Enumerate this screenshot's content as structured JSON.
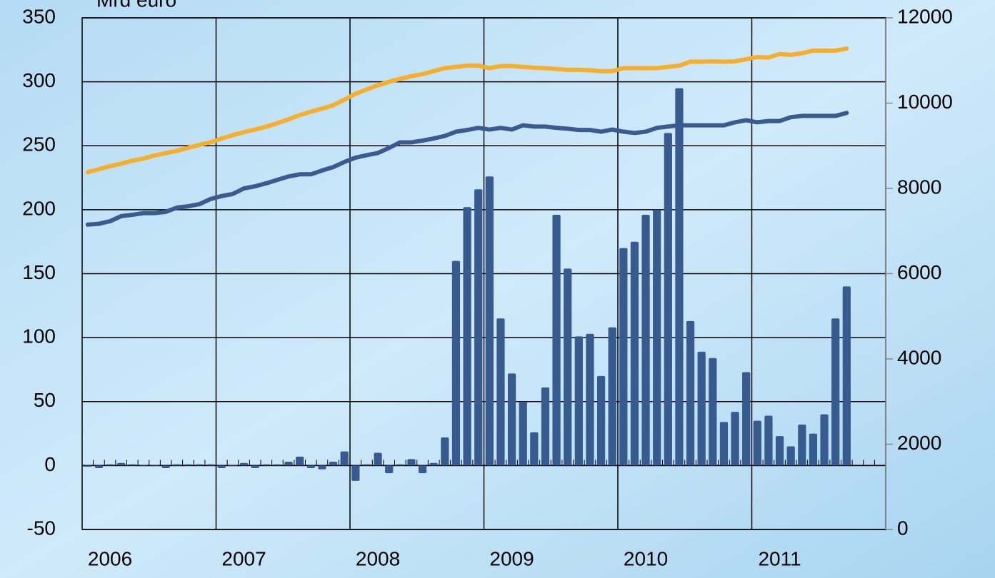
{
  "chart_data": {
    "type": "bar",
    "y_label": "Mrd euro",
    "categories": [
      null,
      null,
      "2006",
      null,
      null,
      null,
      null,
      null,
      null,
      null,
      null,
      null,
      null,
      null,
      "2007",
      null,
      null,
      null,
      null,
      null,
      null,
      null,
      null,
      null,
      null,
      null,
      "2008",
      null,
      null,
      null,
      null,
      null,
      null,
      null,
      null,
      null,
      null,
      null,
      "2009",
      null,
      null,
      null,
      null,
      null,
      null,
      null,
      null,
      null,
      null,
      null,
      "2010",
      null,
      null,
      null,
      null,
      null,
      null,
      null,
      null,
      null,
      null,
      null,
      "2011",
      null,
      null,
      null,
      null,
      null,
      null,
      null,
      null,
      null
    ],
    "ylim": [
      -50,
      350
    ],
    "yticks": [
      -50,
      0,
      50,
      100,
      150,
      200,
      250,
      300,
      350
    ],
    "y2lim": [
      0,
      12000
    ],
    "y2ticks": [
      0,
      2000,
      4000,
      6000,
      8000,
      10000,
      12000
    ],
    "grid": true,
    "series": [
      {
        "type": "bar",
        "color": "#375a8f",
        "values": [
          -1,
          -2,
          1,
          2,
          1,
          0,
          0,
          -2,
          1,
          1,
          1,
          1,
          -2,
          0,
          2,
          -2,
          1,
          1,
          3,
          7,
          -2,
          -3,
          3,
          11,
          -12,
          1,
          10,
          -6,
          1,
          5,
          -6,
          2,
          22,
          160,
          202,
          216,
          226,
          115,
          72,
          50,
          26,
          61,
          196,
          154,
          101,
          103,
          70,
          108,
          170,
          175,
          196,
          200,
          260,
          295,
          113,
          89,
          84,
          34,
          42,
          73,
          35,
          39,
          23,
          15,
          32,
          25,
          40,
          115,
          140,
          null,
          null,
          null
        ]
      },
      {
        "type": "line",
        "axis": "y2",
        "color": "#f6ae2d",
        "values": [
          8380,
          8450,
          8520,
          8580,
          8650,
          8700,
          8770,
          8830,
          8880,
          8950,
          9020,
          9080,
          9170,
          9250,
          9320,
          9380,
          9450,
          9530,
          9620,
          9720,
          9800,
          9870,
          9950,
          10080,
          10220,
          10320,
          10420,
          10500,
          10570,
          10630,
          10680,
          10750,
          10820,
          10850,
          10880,
          10880,
          10820,
          10870,
          10870,
          10850,
          10830,
          10820,
          10800,
          10780,
          10780,
          10770,
          10750,
          10750,
          10820,
          10820,
          10820,
          10820,
          10850,
          10880,
          10970,
          10970,
          10980,
          10970,
          10980,
          11030,
          11080,
          11070,
          11150,
          11130,
          11170,
          11230,
          11230,
          11230,
          11280,
          null,
          null,
          null
        ]
      },
      {
        "type": "line",
        "axis": "y2",
        "color": "#3b5a90",
        "values": [
          7150,
          7170,
          7230,
          7350,
          7380,
          7420,
          7420,
          7450,
          7550,
          7580,
          7630,
          7750,
          7820,
          7870,
          8000,
          8050,
          8120,
          8200,
          8280,
          8330,
          8330,
          8420,
          8500,
          8620,
          8720,
          8780,
          8830,
          8950,
          9080,
          9080,
          9120,
          9170,
          9230,
          9330,
          9370,
          9420,
          9380,
          9420,
          9380,
          9480,
          9450,
          9450,
          9420,
          9400,
          9370,
          9370,
          9330,
          9380,
          9330,
          9300,
          9330,
          9420,
          9450,
          9480,
          9480,
          9480,
          9480,
          9480,
          9550,
          9600,
          9550,
          9580,
          9580,
          9670,
          9700,
          9700,
          9700,
          9700,
          9770,
          null,
          null,
          null
        ]
      }
    ]
  }
}
